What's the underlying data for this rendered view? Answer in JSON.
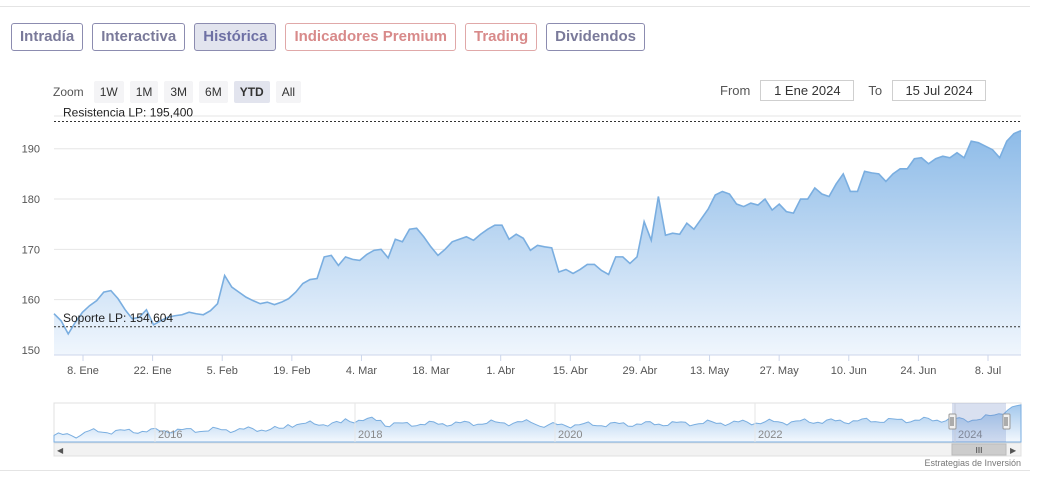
{
  "tabs": [
    {
      "label": "Intradía",
      "state": "normal"
    },
    {
      "label": "Interactiva",
      "state": "normal"
    },
    {
      "label": "Histórica",
      "state": "active"
    },
    {
      "label": "Indicadores Premium",
      "state": "premium"
    },
    {
      "label": "Trading",
      "state": "premium"
    },
    {
      "label": "Dividendos",
      "state": "normal"
    }
  ],
  "zoom": {
    "label": "Zoom",
    "buttons": [
      "1W",
      "1M",
      "3M",
      "6M",
      "YTD",
      "All"
    ],
    "selected": "YTD"
  },
  "range": {
    "from_label": "From",
    "from_value": "1 Ene 2024",
    "to_label": "To",
    "to_value": "15 Jul 2024"
  },
  "credit": "Estrategias de Inversión",
  "chart_data": {
    "type": "area",
    "title": "",
    "xlabel": "",
    "ylabel": "",
    "ylim": [
      149,
      196.5
    ],
    "yticks": [
      150,
      160,
      170,
      180,
      190
    ],
    "x_ticks": [
      "8. Ene",
      "22. Ene",
      "5. Feb",
      "19. Feb",
      "4. Mar",
      "18. Mar",
      "1. Abr",
      "15. Abr",
      "29. Abr",
      "13. May",
      "27. May",
      "10. Jun",
      "24. Jun",
      "8. Jul"
    ],
    "colors": {
      "line": "#7aaee0",
      "fill_top": "#8dbbe8",
      "fill_bottom": "#f0f6fd",
      "level_line": "#333333"
    },
    "series": [
      {
        "values": [
          157.2,
          155.8,
          153.2,
          155.5,
          157.5,
          158.8,
          159.8,
          161.5,
          161.8,
          160.2,
          158.0,
          156.2,
          156.5,
          158.0,
          155.0,
          155.8,
          156.5,
          156.8,
          157.0,
          157.5,
          157.2,
          157.0,
          157.8,
          159.2,
          164.8,
          162.5,
          161.5,
          160.5,
          159.8,
          159.2,
          159.5,
          159.0,
          159.5,
          160.2,
          161.5,
          163.2,
          164.0,
          164.2,
          168.5,
          168.8,
          166.8,
          168.5,
          168.0,
          167.8,
          169.0,
          169.8,
          170.0,
          168.3,
          172.0,
          171.5,
          174.0,
          174.2,
          172.5,
          170.5,
          168.8,
          170.0,
          171.5,
          172.0,
          172.5,
          171.8,
          173.0,
          174.0,
          174.8,
          174.8,
          172.0,
          173.0,
          172.2,
          169.8,
          170.8,
          170.5,
          170.3,
          165.5,
          166.0,
          165.2,
          166.0,
          167.0,
          167.0,
          165.8,
          165.0,
          168.5,
          168.5,
          167.2,
          168.5,
          175.5,
          171.8,
          180.5,
          172.8,
          173.2,
          173.0,
          175.2,
          174.0,
          176.0,
          178.0,
          180.8,
          181.5,
          181.0,
          179.0,
          178.5,
          179.2,
          178.8,
          180.0,
          177.8,
          179.0,
          177.5,
          177.2,
          180.0,
          180.0,
          182.2,
          181.0,
          180.5,
          183.0,
          185.0,
          181.5,
          181.5,
          185.5,
          185.2,
          185.0,
          183.5,
          185.0,
          186.0,
          186.0,
          188.0,
          188.2,
          187.0,
          188.0,
          188.5,
          188.2,
          189.2,
          188.2,
          191.5,
          191.2,
          190.5,
          189.8,
          188.2,
          191.5,
          193.0,
          193.6
        ],
        "level_lines": [
          {
            "label": "Resistencia LP: 195,400",
            "value": 195.4
          },
          {
            "label": "Soporte LP: 154,604",
            "value": 154.604
          }
        ]
      }
    ],
    "navigator": {
      "year_labels": [
        "2016",
        "2018",
        "2020",
        "2022",
        "2024"
      ],
      "handle_glyph": "III",
      "left_arrow": "◀",
      "right_arrow": "▶"
    }
  }
}
